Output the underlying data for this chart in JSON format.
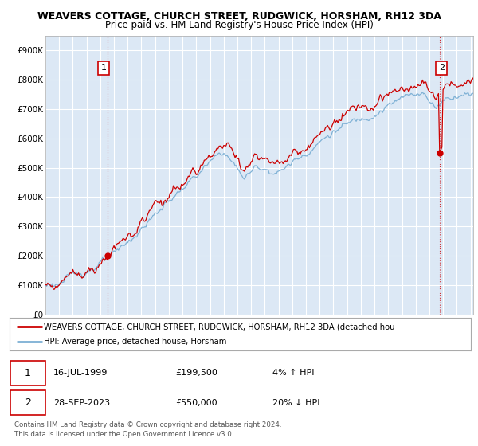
{
  "title": "WEAVERS COTTAGE, CHURCH STREET, RUDGWICK, HORSHAM, RH12 3DA",
  "subtitle": "Price paid vs. HM Land Registry's House Price Index (HPI)",
  "ylim": [
    0,
    950000
  ],
  "yticks": [
    0,
    100000,
    200000,
    300000,
    400000,
    500000,
    600000,
    700000,
    800000,
    900000
  ],
  "ytick_labels": [
    "£0",
    "£100K",
    "£200K",
    "£300K",
    "£400K",
    "£500K",
    "£600K",
    "£700K",
    "£800K",
    "£900K"
  ],
  "xlim_start": 1995.0,
  "xlim_end": 2026.2,
  "sale1_date": 1999.54,
  "sale1_price": 199500,
  "sale1_label": "1",
  "sale2_date": 2023.74,
  "sale2_price": 550000,
  "sale2_label": "2",
  "hpi_color": "#7bafd4",
  "price_color": "#cc0000",
  "background_color": "#dce8f5",
  "grid_color": "#ffffff",
  "legend_line1": "WEAVERS COTTAGE, CHURCH STREET, RUDGWICK, HORSHAM, RH12 3DA (detached hou",
  "legend_line2": "HPI: Average price, detached house, Horsham",
  "table_row1": [
    "1",
    "16-JUL-1999",
    "£199,500",
    "4% ↑ HPI"
  ],
  "table_row2": [
    "2",
    "28-SEP-2023",
    "£550,000",
    "20% ↓ HPI"
  ],
  "footnote": "Contains HM Land Registry data © Crown copyright and database right 2024.\nThis data is licensed under the Open Government Licence v3.0.",
  "title_fontsize": 9,
  "subtitle_fontsize": 8.5,
  "tick_fontsize": 7.5,
  "annotation_fontsize": 8
}
